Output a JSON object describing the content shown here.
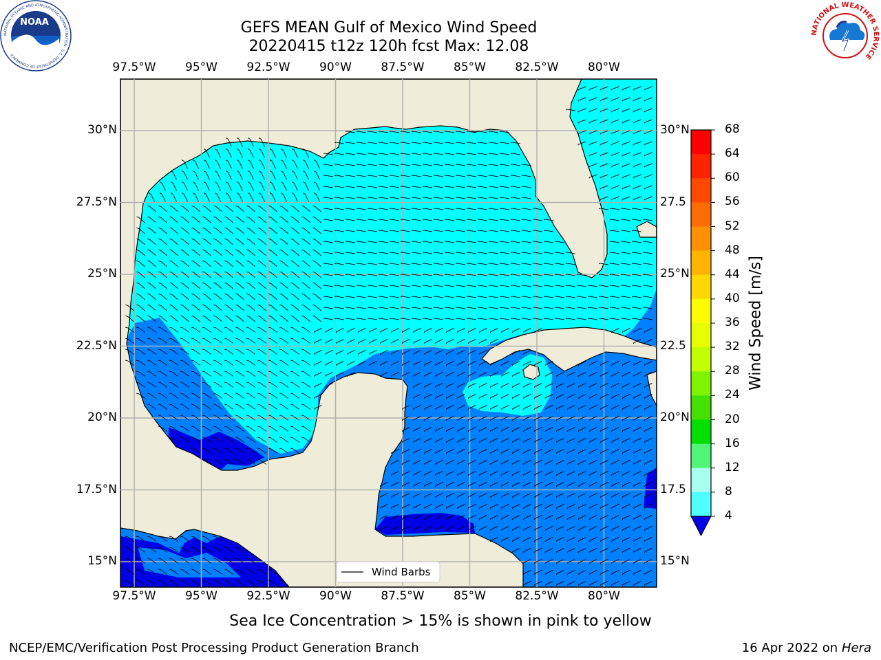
{
  "title_line1": "GEFS MEAN Gulf of Mexico Wind Speed",
  "title_line2": "20220415 t12z 120h fcst   Max: 12.08",
  "lon_labels": [
    "97.5°W",
    "95°W",
    "92.5°W",
    "90°W",
    "87.5°W",
    "85°W",
    "82.5°W",
    "80°W"
  ],
  "lat_labels_left": [
    "30°N",
    "27.5°N",
    "25°N",
    "22.5°N",
    "20°N",
    "17.5°N",
    "15°N"
  ],
  "lat_labels_right": [
    "30°N",
    "27.5",
    "25°N",
    "22.5",
    "20°N",
    "17.5",
    "15°N"
  ],
  "colorbar": {
    "label": "Wind Speed [m/s]",
    "ticks": [
      "68",
      "64",
      "60",
      "56",
      "52",
      "48",
      "44",
      "40",
      "36",
      "32",
      "28",
      "24",
      "20",
      "16",
      "12",
      "8",
      "4"
    ],
    "colors": [
      "#ff0000",
      "#ff2400",
      "#ff4800",
      "#ff6c00",
      "#ff9000",
      "#ffb400",
      "#ffd800",
      "#fffc00",
      "#e6ff00",
      "#c2ff00",
      "#7ef400",
      "#44e000",
      "#00e000",
      "#50f578",
      "#a8fff0",
      "#50ffff",
      "#00ffff",
      "#0080ff"
    ],
    "extend_color": "#0000e6"
  },
  "legend_label": "Wind Barbs",
  "sea_ice_note": "Sea Ice Concentration > 15% is shown in pink to yellow",
  "footer_left": "NCEP/EMC/Verification Post Processing Product Generation Branch",
  "footer_right_prefix": "16 Apr 2022 on ",
  "footer_right_host": "Hera",
  "logos": {
    "noaa_text": "NOAA",
    "noaa_ring": "NATIONAL OCEANIC AND ATMOSPHERIC ADMINISTRATION · U.S. DEPARTMENT OF COMMERCE",
    "nws_ring": "NATIONAL WEATHER SERVICE"
  },
  "colors": {
    "land": "#efedda",
    "ocean_light": "#00ffff",
    "ocean_mid": "#0080ff",
    "ocean_dark": "#0000e6",
    "grid": "#b0b0b0"
  }
}
